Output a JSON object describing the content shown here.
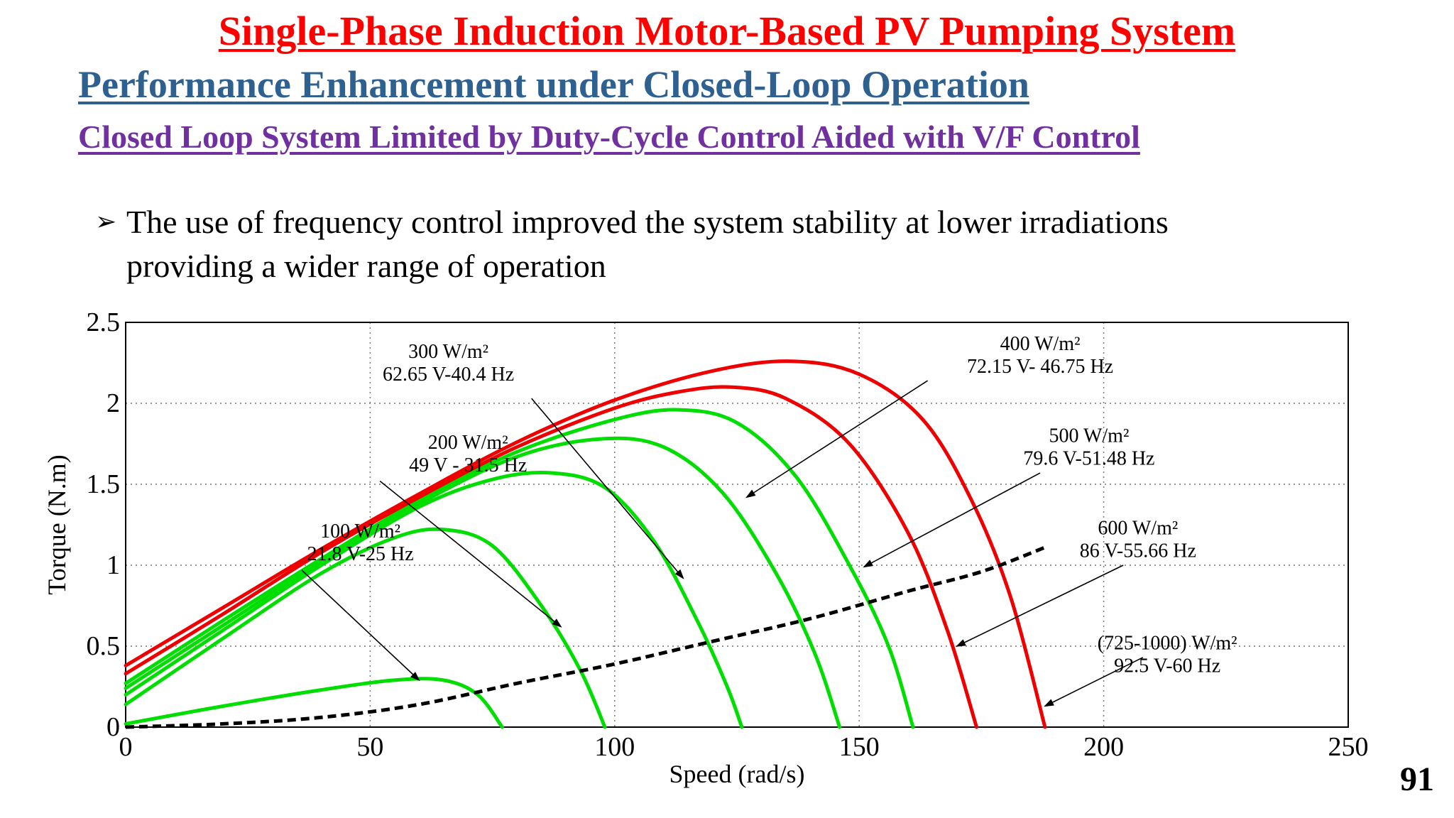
{
  "slide": {
    "title": "Single-Phase Induction Motor-Based PV Pumping System",
    "subtitle": "Performance Enhancement under Closed-Loop Operation",
    "section": "Closed Loop System Limited by Duty-Cycle Control Aided with V/F Control",
    "bullet_line1": "The use of frequency control improved the system stability at lower irradiations",
    "bullet_line2": "providing a wider range of operation",
    "page_number": "91"
  },
  "chart_data": {
    "type": "line",
    "title": "",
    "xlabel": "Speed (rad/s)",
    "ylabel": "Torque (N.m)",
    "xlim": [
      0,
      250
    ],
    "ylim": [
      0,
      2.5
    ],
    "xticks": [
      "0",
      "50",
      "100",
      "150",
      "200",
      "250"
    ],
    "yticks": [
      "0",
      "0.5",
      "1",
      "1.5",
      "2",
      "2.5"
    ],
    "grid": true,
    "colors": {
      "green": "#00dd00",
      "red": "#ee0000",
      "load": "#000000"
    },
    "series": [
      {
        "color": "green",
        "points": [
          [
            0,
            0.02
          ],
          [
            20,
            0.13
          ],
          [
            40,
            0.23
          ],
          [
            55,
            0.29
          ],
          [
            65,
            0.29
          ],
          [
            72,
            0.2
          ],
          [
            77,
            0
          ]
        ]
      },
      {
        "color": "green",
        "points": [
          [
            0,
            0.14
          ],
          [
            20,
            0.55
          ],
          [
            40,
            0.95
          ],
          [
            55,
            1.17
          ],
          [
            65,
            1.22
          ],
          [
            75,
            1.12
          ],
          [
            85,
            0.75
          ],
          [
            93,
            0.35
          ],
          [
            98,
            0
          ]
        ]
      },
      {
        "color": "green",
        "points": [
          [
            0,
            0.2
          ],
          [
            20,
            0.6
          ],
          [
            40,
            1.0
          ],
          [
            60,
            1.36
          ],
          [
            75,
            1.53
          ],
          [
            87,
            1.57
          ],
          [
            98,
            1.48
          ],
          [
            108,
            1.15
          ],
          [
            117,
            0.65
          ],
          [
            123,
            0.25
          ],
          [
            126,
            0
          ]
        ]
      },
      {
        "color": "green",
        "points": [
          [
            0,
            0.24
          ],
          [
            20,
            0.63
          ],
          [
            40,
            1.02
          ],
          [
            60,
            1.38
          ],
          [
            80,
            1.67
          ],
          [
            97,
            1.78
          ],
          [
            110,
            1.73
          ],
          [
            122,
            1.45
          ],
          [
            133,
            0.95
          ],
          [
            141,
            0.45
          ],
          [
            146,
            0
          ]
        ]
      },
      {
        "color": "green",
        "points": [
          [
            0,
            0.27
          ],
          [
            20,
            0.66
          ],
          [
            40,
            1.04
          ],
          [
            60,
            1.4
          ],
          [
            80,
            1.7
          ],
          [
            100,
            1.9
          ],
          [
            113,
            1.96
          ],
          [
            125,
            1.88
          ],
          [
            137,
            1.55
          ],
          [
            148,
            1.0
          ],
          [
            156,
            0.5
          ],
          [
            161,
            0
          ]
        ]
      },
      {
        "color": "red",
        "points": [
          [
            0,
            0.33
          ],
          [
            20,
            0.7
          ],
          [
            40,
            1.08
          ],
          [
            60,
            1.42
          ],
          [
            80,
            1.73
          ],
          [
            100,
            1.97
          ],
          [
            113,
            2.07
          ],
          [
            124,
            2.1
          ],
          [
            135,
            2.03
          ],
          [
            148,
            1.75
          ],
          [
            160,
            1.2
          ],
          [
            168,
            0.6
          ],
          [
            174,
            0
          ]
        ]
      },
      {
        "color": "red",
        "points": [
          [
            0,
            0.38
          ],
          [
            20,
            0.74
          ],
          [
            40,
            1.1
          ],
          [
            60,
            1.44
          ],
          [
            80,
            1.76
          ],
          [
            100,
            2.02
          ],
          [
            120,
            2.2
          ],
          [
            136,
            2.26
          ],
          [
            150,
            2.18
          ],
          [
            163,
            1.9
          ],
          [
            173,
            1.4
          ],
          [
            181,
            0.8
          ],
          [
            188,
            0
          ]
        ]
      },
      {
        "color": "load",
        "dashed": true,
        "points": [
          [
            0,
            0
          ],
          [
            20,
            0.02
          ],
          [
            40,
            0.06
          ],
          [
            60,
            0.14
          ],
          [
            80,
            0.27
          ],
          [
            100,
            0.39
          ],
          [
            120,
            0.53
          ],
          [
            140,
            0.67
          ],
          [
            160,
            0.84
          ],
          [
            175,
            0.96
          ],
          [
            188,
            1.11
          ]
        ]
      }
    ],
    "annotations": [
      {
        "line1": "100 W/m²",
        "line2": "21.8 V-25 Hz",
        "at": [
          48,
          1.17
        ],
        "arrow_from": [
          36,
          0.97
        ],
        "arrow_to": [
          60,
          0.29
        ]
      },
      {
        "line1": "200 W/m²",
        "line2": "49 V - 31.5 Hz",
        "at": [
          70,
          1.72
        ],
        "arrow_from": [
          52,
          1.52
        ],
        "arrow_to": [
          89,
          0.62
        ]
      },
      {
        "line1": "300 W/m²",
        "line2": "62.65 V-40.4 Hz",
        "at": [
          66,
          2.28
        ],
        "arrow_from": [
          83,
          2.03
        ],
        "arrow_to": [
          114,
          0.92
        ]
      },
      {
        "line1": "400 W/m²",
        "line2": "72.15 V- 46.75 Hz",
        "at": [
          187,
          2.33
        ],
        "arrow_from": [
          164,
          2.14
        ],
        "arrow_to": [
          127,
          1.42
        ]
      },
      {
        "line1": "500 W/m²",
        "line2": "79.6 V-51.48 Hz",
        "at": [
          197,
          1.76
        ],
        "arrow_from": [
          187,
          1.57
        ],
        "arrow_to": [
          151,
          0.99
        ]
      },
      {
        "line1": "600 W/m²",
        "line2": "86 V-55.66 Hz",
        "at": [
          207,
          1.19
        ],
        "arrow_from": [
          204,
          1.0
        ],
        "arrow_to": [
          170,
          0.5
        ]
      },
      {
        "line1": "(725-1000) W/m²",
        "line2": "92.5 V-60 Hz",
        "at": [
          213,
          0.48
        ],
        "arrow_from": [
          208,
          0.43
        ],
        "arrow_to": [
          188,
          0.13
        ]
      }
    ]
  }
}
